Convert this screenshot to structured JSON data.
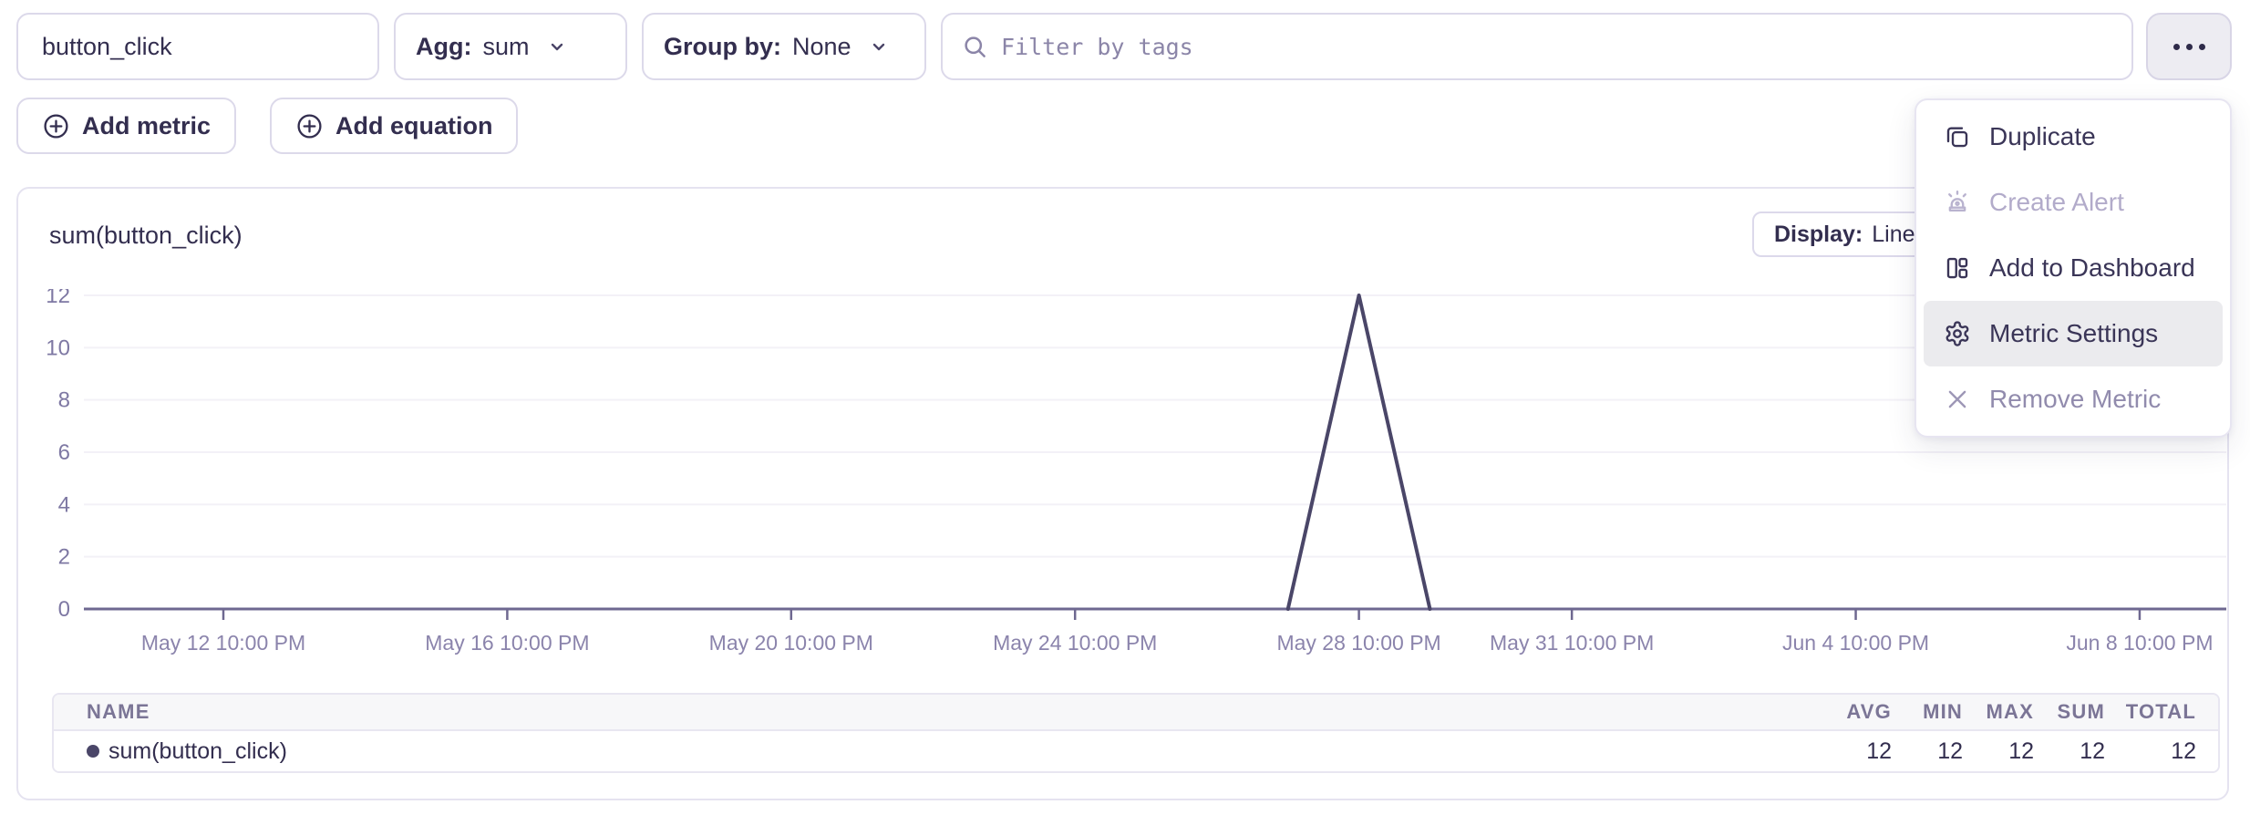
{
  "toolbar": {
    "metric_input": {
      "value": "button_click"
    },
    "agg": {
      "label": "Agg:",
      "value": "sum"
    },
    "group_by": {
      "label": "Group by:",
      "value": "None"
    },
    "filter": {
      "placeholder": "Filter by tags"
    }
  },
  "actions": {
    "add_metric_label": "Add metric",
    "add_equation_label": "Add equation"
  },
  "menu": {
    "items": [
      {
        "label": "Duplicate",
        "icon": "duplicate-icon",
        "state": "enabled"
      },
      {
        "label": "Create Alert",
        "icon": "alert-icon",
        "state": "disabled"
      },
      {
        "label": "Add to Dashboard",
        "icon": "dashboard-icon",
        "state": "enabled"
      },
      {
        "label": "Metric Settings",
        "icon": "settings-icon",
        "state": "highlighted"
      },
      {
        "label": "Remove Metric",
        "icon": "remove-icon",
        "state": "muted"
      }
    ]
  },
  "chart": {
    "title": "sum(button_click)",
    "display": {
      "label": "Display:",
      "value": "Line"
    }
  },
  "chart_data": {
    "type": "line",
    "title": "sum(button_click)",
    "ylim": [
      0,
      12
    ],
    "yticks": [
      0,
      2,
      4,
      6,
      8,
      10,
      12
    ],
    "x_ticks": [
      {
        "label": "May 12 10:00 PM",
        "day": 0
      },
      {
        "label": "May 16 10:00 PM",
        "day": 4
      },
      {
        "label": "May 20 10:00 PM",
        "day": 8
      },
      {
        "label": "May 24 10:00 PM",
        "day": 12
      },
      {
        "label": "May 28 10:00 PM",
        "day": 16
      },
      {
        "label": "May 31 10:00 PM",
        "day": 19
      },
      {
        "label": "Jun 4 10:00 PM",
        "day": 23
      },
      {
        "label": "Jun 8 10:00 PM",
        "day": 27
      }
    ],
    "series": [
      {
        "name": "sum(button_click)",
        "color": "#4a4668",
        "points": [
          {
            "x": "May 27 10:00 PM",
            "day": 15,
            "y": 0
          },
          {
            "x": "May 28 10:00 PM",
            "day": 16,
            "y": 12
          },
          {
            "x": "May 29 10:00 PM",
            "day": 17,
            "y": 0
          }
        ]
      }
    ],
    "grid": "horizontal-faint",
    "legend": "none"
  },
  "summary_table": {
    "name_header": "NAME",
    "stat_headers": [
      "AVG",
      "MIN",
      "MAX",
      "SUM",
      "TOTAL"
    ],
    "rows": [
      {
        "name": "sum(button_click)",
        "dot_color": "#4a4668",
        "stats": [
          12,
          12,
          12,
          12,
          12
        ]
      }
    ]
  },
  "colors": {
    "text_dark": "#332e4f",
    "border": "#dcd9ea",
    "muted": "#8b85a8",
    "axis_line": "#6e6890",
    "grid_line": "#f3f1f7",
    "y_label": "#7e78a3",
    "x_label": "#8b84ac",
    "series_line": "#4a4668",
    "menu_highlight": "#ebebee"
  }
}
